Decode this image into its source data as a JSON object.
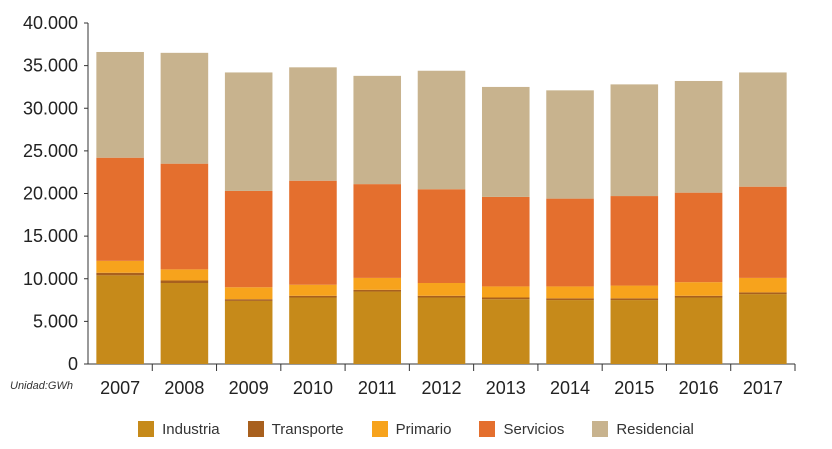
{
  "chart_data": {
    "type": "bar",
    "stacked": true,
    "title": "",
    "xlabel": "",
    "ylabel": "",
    "unit_note": "Unidad:GWh",
    "ylim": [
      0,
      40000
    ],
    "yticks": [
      0,
      5000,
      10000,
      15000,
      20000,
      25000,
      30000,
      35000,
      40000
    ],
    "ytick_labels": [
      "0",
      "5.000",
      "10.000",
      "15.000",
      "20.000",
      "25.000",
      "30.000",
      "35.000",
      "40.000"
    ],
    "categories": [
      "2007",
      "2008",
      "2009",
      "2010",
      "2011",
      "2012",
      "2013",
      "2014",
      "2015",
      "2016",
      "2017"
    ],
    "series": [
      {
        "name": "Industria",
        "color": "#C68A1A",
        "values": [
          10400,
          9500,
          7400,
          7800,
          8500,
          7800,
          7600,
          7500,
          7500,
          7800,
          8200
        ]
      },
      {
        "name": "Transporte",
        "color": "#A8601E",
        "values": [
          300,
          300,
          200,
          200,
          200,
          200,
          200,
          200,
          200,
          200,
          200
        ]
      },
      {
        "name": "Primario",
        "color": "#F7A31C",
        "values": [
          1400,
          1300,
          1400,
          1300,
          1400,
          1500,
          1300,
          1400,
          1500,
          1600,
          1700
        ]
      },
      {
        "name": "Servicios",
        "color": "#E46F2E",
        "values": [
          12100,
          12400,
          11300,
          12200,
          11000,
          11000,
          10500,
          10300,
          10500,
          10500,
          10700
        ]
      },
      {
        "name": "Residencial",
        "color": "#C8B38E",
        "values": [
          12400,
          13000,
          13900,
          13300,
          12700,
          13900,
          12900,
          12700,
          13100,
          13100,
          13400
        ]
      }
    ],
    "legend_position": "bottom-center"
  }
}
